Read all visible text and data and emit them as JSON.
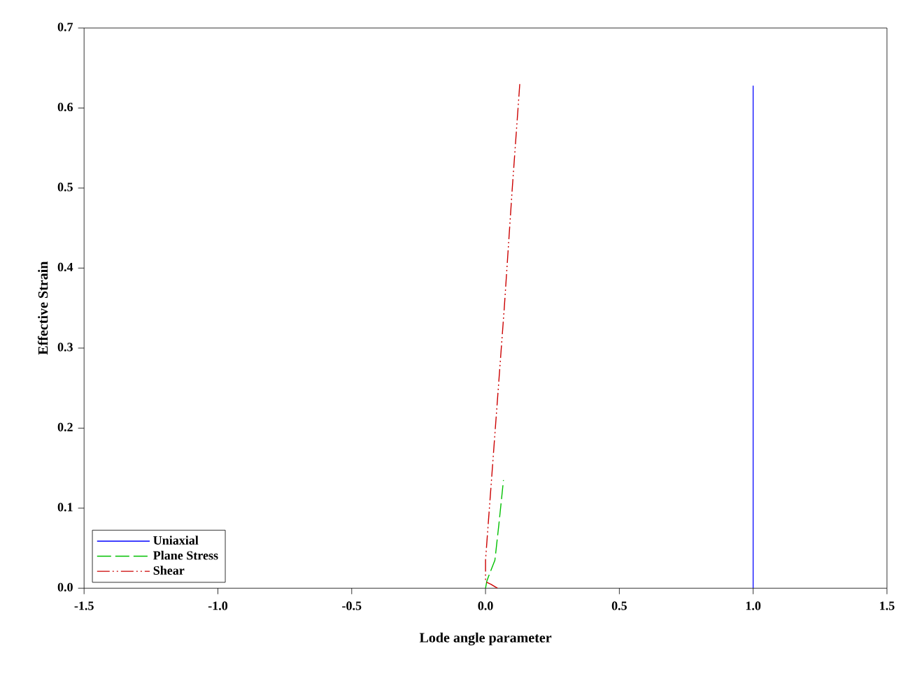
{
  "chart_data": {
    "type": "line",
    "xlabel": "Lode angle parameter",
    "ylabel": "Effective Strain",
    "xlim": [
      -1.5,
      1.5
    ],
    "ylim": [
      0,
      0.7
    ],
    "xticks": [
      -1.5,
      {
        "value": -1.0,
        "label": "-1.0"
      },
      -0.5,
      {
        "value": 0.0,
        "label": "0.0"
      },
      0.5,
      {
        "value": 1.0,
        "label": "1.0"
      },
      1.5
    ],
    "yticks": [
      {
        "value": 0.0,
        "label": "0.0"
      },
      0.1,
      0.2,
      0.3,
      0.4,
      0.5,
      0.6,
      0.7
    ],
    "legend": "bottom left",
    "grid": false,
    "marker": "none",
    "series": [
      {
        "name": "Uniaxial",
        "color": "#0000ff",
        "line_style": "solid",
        "x": [
          1.0,
          1.0,
          1.0
        ],
        "values": [
          0.0,
          0.3,
          0.628
        ]
      },
      {
        "name": "Plane Stress",
        "color": "#00c000",
        "line_style": "dashed",
        "x": [
          0.0,
          0.005,
          0.015,
          0.035,
          0.05,
          0.067
        ],
        "values": [
          0.0,
          0.009,
          0.018,
          0.035,
          0.08,
          0.135
        ]
      },
      {
        "name": "Shear",
        "color": "#cc0000",
        "line_style": "dash dot dot",
        "x": [
          0.045,
          0.02,
          0.0,
          0.0,
          0.03,
          0.07,
          0.1,
          0.128
        ],
        "values": [
          0.0,
          0.005,
          0.008,
          0.035,
          0.17,
          0.35,
          0.5,
          0.63
        ]
      }
    ]
  }
}
